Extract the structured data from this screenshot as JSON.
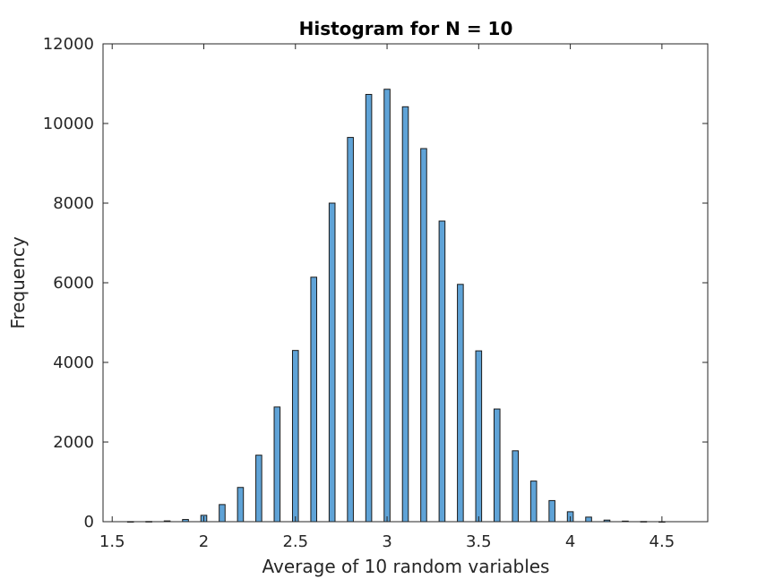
{
  "chart_data": {
    "type": "bar",
    "title": "Histogram for N = 10",
    "xlabel": "Average of 10 random variables",
    "ylabel": "Frequency",
    "xlim": [
      1.45,
      4.75
    ],
    "ylim": [
      0,
      12000
    ],
    "xticks": [
      "1.5",
      "2",
      "2.5",
      "3",
      "3.5",
      "4",
      "4.5"
    ],
    "xtick_values": [
      1.5,
      2,
      2.5,
      3,
      3.5,
      4,
      4.5
    ],
    "yticks": [
      "0",
      "2000",
      "4000",
      "6000",
      "8000",
      "10000",
      "12000"
    ],
    "ytick_values": [
      0,
      2000,
      4000,
      6000,
      8000,
      10000,
      12000
    ],
    "bin_width": 0.0322,
    "bar_color": "#5fa3d7",
    "edge_color": "#1a1a1a",
    "grid": false,
    "bins": [
      {
        "x": 1.6,
        "value": 2
      },
      {
        "x": 1.7,
        "value": 5
      },
      {
        "x": 1.8,
        "value": 20
      },
      {
        "x": 1.9,
        "value": 55
      },
      {
        "x": 2.0,
        "value": 160
      },
      {
        "x": 2.1,
        "value": 430
      },
      {
        "x": 2.2,
        "value": 860
      },
      {
        "x": 2.3,
        "value": 1670
      },
      {
        "x": 2.4,
        "value": 2880
      },
      {
        "x": 2.5,
        "value": 4300
      },
      {
        "x": 2.6,
        "value": 6140
      },
      {
        "x": 2.7,
        "value": 8000
      },
      {
        "x": 2.8,
        "value": 9650
      },
      {
        "x": 2.9,
        "value": 10730
      },
      {
        "x": 3.0,
        "value": 10860
      },
      {
        "x": 3.1,
        "value": 10420
      },
      {
        "x": 3.2,
        "value": 9370
      },
      {
        "x": 3.3,
        "value": 7550
      },
      {
        "x": 3.4,
        "value": 5960
      },
      {
        "x": 3.5,
        "value": 4290
      },
      {
        "x": 3.6,
        "value": 2830
      },
      {
        "x": 3.7,
        "value": 1780
      },
      {
        "x": 3.8,
        "value": 1020
      },
      {
        "x": 3.9,
        "value": 530
      },
      {
        "x": 4.0,
        "value": 250
      },
      {
        "x": 4.1,
        "value": 115
      },
      {
        "x": 4.2,
        "value": 40
      },
      {
        "x": 4.3,
        "value": 15
      },
      {
        "x": 4.4,
        "value": 5
      },
      {
        "x": 4.5,
        "value": 1
      }
    ]
  }
}
